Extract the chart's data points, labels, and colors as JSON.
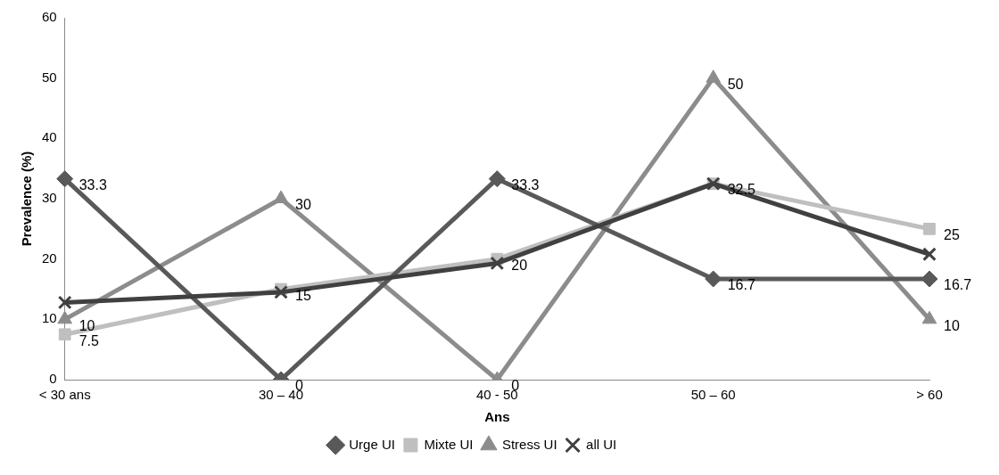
{
  "chart_data": {
    "type": "line",
    "xlabel": "Ans",
    "ylabel": "Prevalence (%)",
    "categories": [
      "< 30 ans",
      "30 – 40",
      "40 - 50",
      "50 – 60",
      "> 60"
    ],
    "series": [
      {
        "name": "Urge UI",
        "color": "#595959",
        "marker": "diamond",
        "values": [
          33.3,
          0,
          33.3,
          16.7,
          16.7
        ],
        "value_labels": [
          "33.3",
          "0",
          "33.3",
          "16.7",
          "16.7"
        ]
      },
      {
        "name": "Mixte UI",
        "color": "#bfbfbf",
        "marker": "square",
        "values": [
          7.5,
          15,
          20,
          32.5,
          25
        ],
        "value_labels": [
          "7.5",
          "15",
          "20",
          "32.5",
          "25"
        ]
      },
      {
        "name": "Stress UI",
        "color": "#8c8c8c",
        "marker": "triangle",
        "values": [
          10,
          30,
          0,
          50,
          10
        ],
        "value_labels": [
          "10",
          "30",
          "0",
          "50",
          "10"
        ]
      },
      {
        "name": "all UI",
        "color": "#404040",
        "marker": "cross",
        "values": [
          12.8,
          14.5,
          19.3,
          32.5,
          20.8
        ]
      }
    ],
    "ylim": [
      0,
      60
    ],
    "yticks": [
      0,
      10,
      20,
      30,
      40,
      50,
      60
    ],
    "grid": false,
    "legend": "bottom"
  }
}
